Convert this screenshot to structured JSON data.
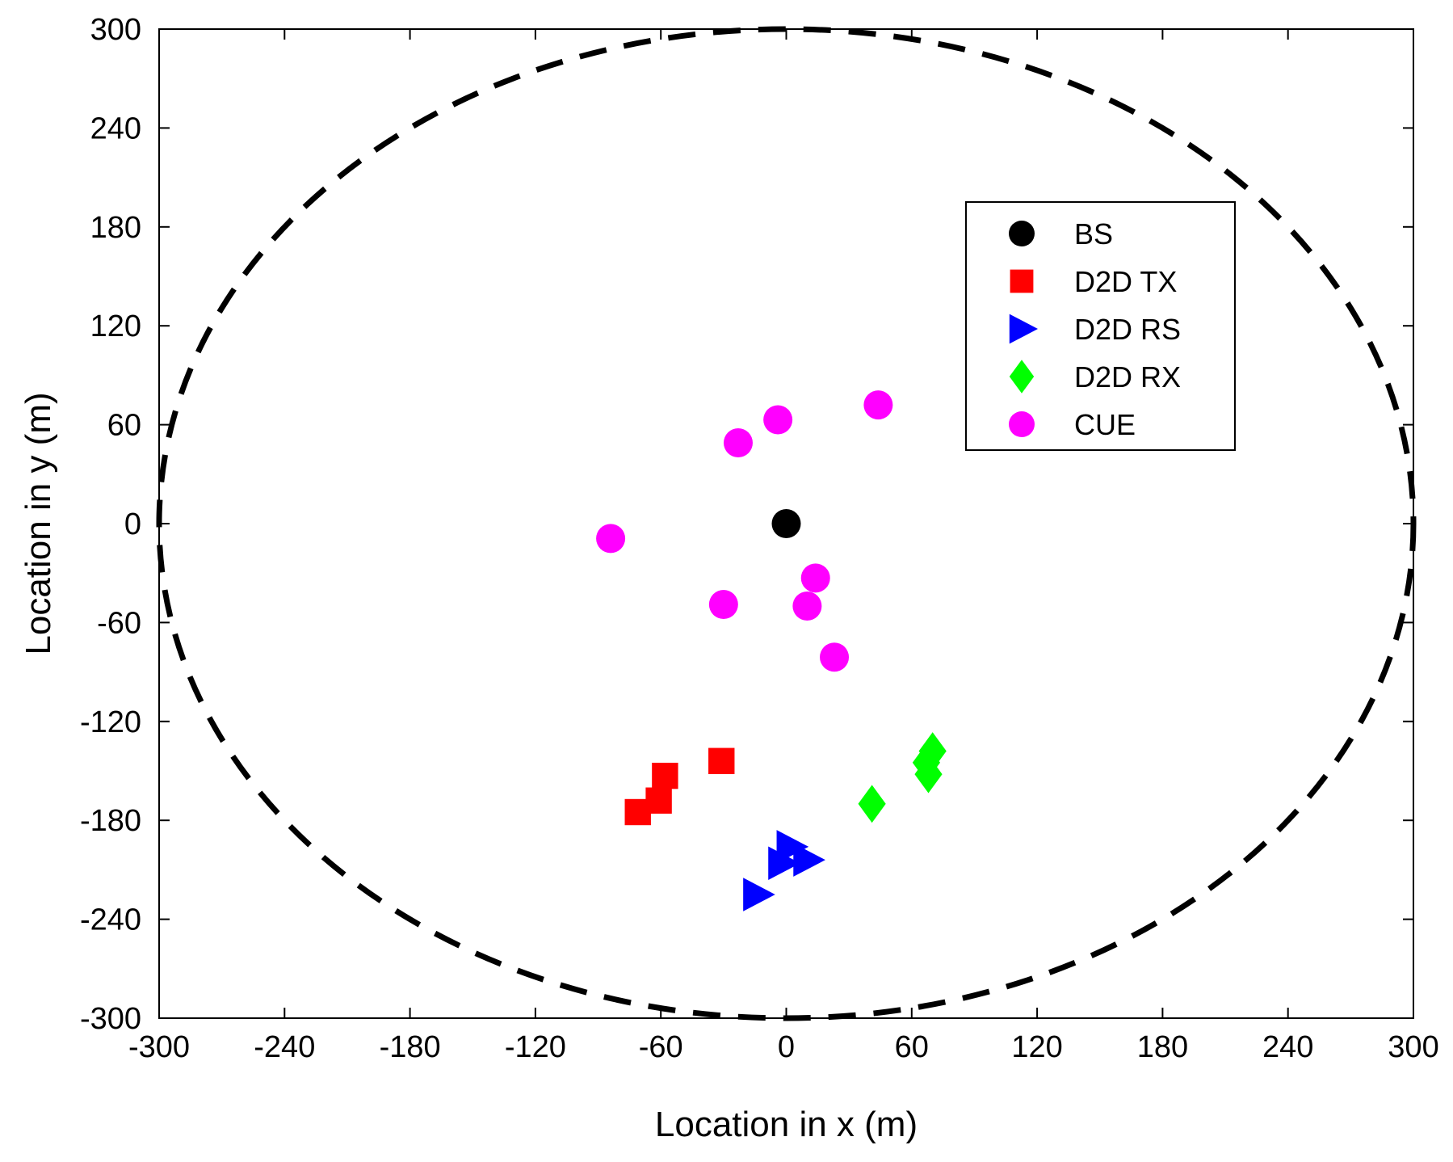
{
  "chart_data": {
    "type": "scatter",
    "title": "",
    "xlabel": "Location in x (m)",
    "ylabel": "Location in y (m)",
    "xlim": [
      -300,
      300
    ],
    "ylim": [
      -300,
      300
    ],
    "xticks": [
      -300,
      -240,
      -180,
      -120,
      -60,
      0,
      60,
      120,
      180,
      240,
      300
    ],
    "yticks": [
      -300,
      -240,
      -180,
      -120,
      -60,
      0,
      60,
      120,
      180,
      240,
      300
    ],
    "grid": false,
    "legend_position": "upper-right",
    "boundary": {
      "shape": "circle",
      "center": [
        0,
        0
      ],
      "radius": 300,
      "style": "dashed",
      "color": "#000000"
    },
    "series": [
      {
        "name": "BS",
        "marker": "circle",
        "color": "#000000",
        "points": [
          [
            0,
            0
          ]
        ]
      },
      {
        "name": "D2D TX",
        "marker": "square",
        "color": "#ff0000",
        "points": [
          [
            -31,
            -144
          ],
          [
            -58,
            -153
          ],
          [
            -61,
            -168
          ],
          [
            -71,
            -175
          ]
        ]
      },
      {
        "name": "D2D RS",
        "marker": "triangle-right",
        "color": "#0000ff",
        "points": [
          [
            2,
            -196
          ],
          [
            -2,
            -206
          ],
          [
            10,
            -204
          ],
          [
            -14,
            -225
          ]
        ]
      },
      {
        "name": "D2D RX",
        "marker": "diamond",
        "color": "#00ff00",
        "points": [
          [
            70,
            -138
          ],
          [
            67,
            -145
          ],
          [
            68,
            -152
          ],
          [
            41,
            -170
          ]
        ]
      },
      {
        "name": "CUE",
        "marker": "circle",
        "color": "#ff00ff",
        "points": [
          [
            44,
            72
          ],
          [
            -4,
            63
          ],
          [
            -23,
            49
          ],
          [
            -84,
            -9
          ],
          [
            14,
            -33
          ],
          [
            10,
            -50
          ],
          [
            -30,
            -49
          ],
          [
            23,
            -81
          ]
        ]
      }
    ]
  }
}
